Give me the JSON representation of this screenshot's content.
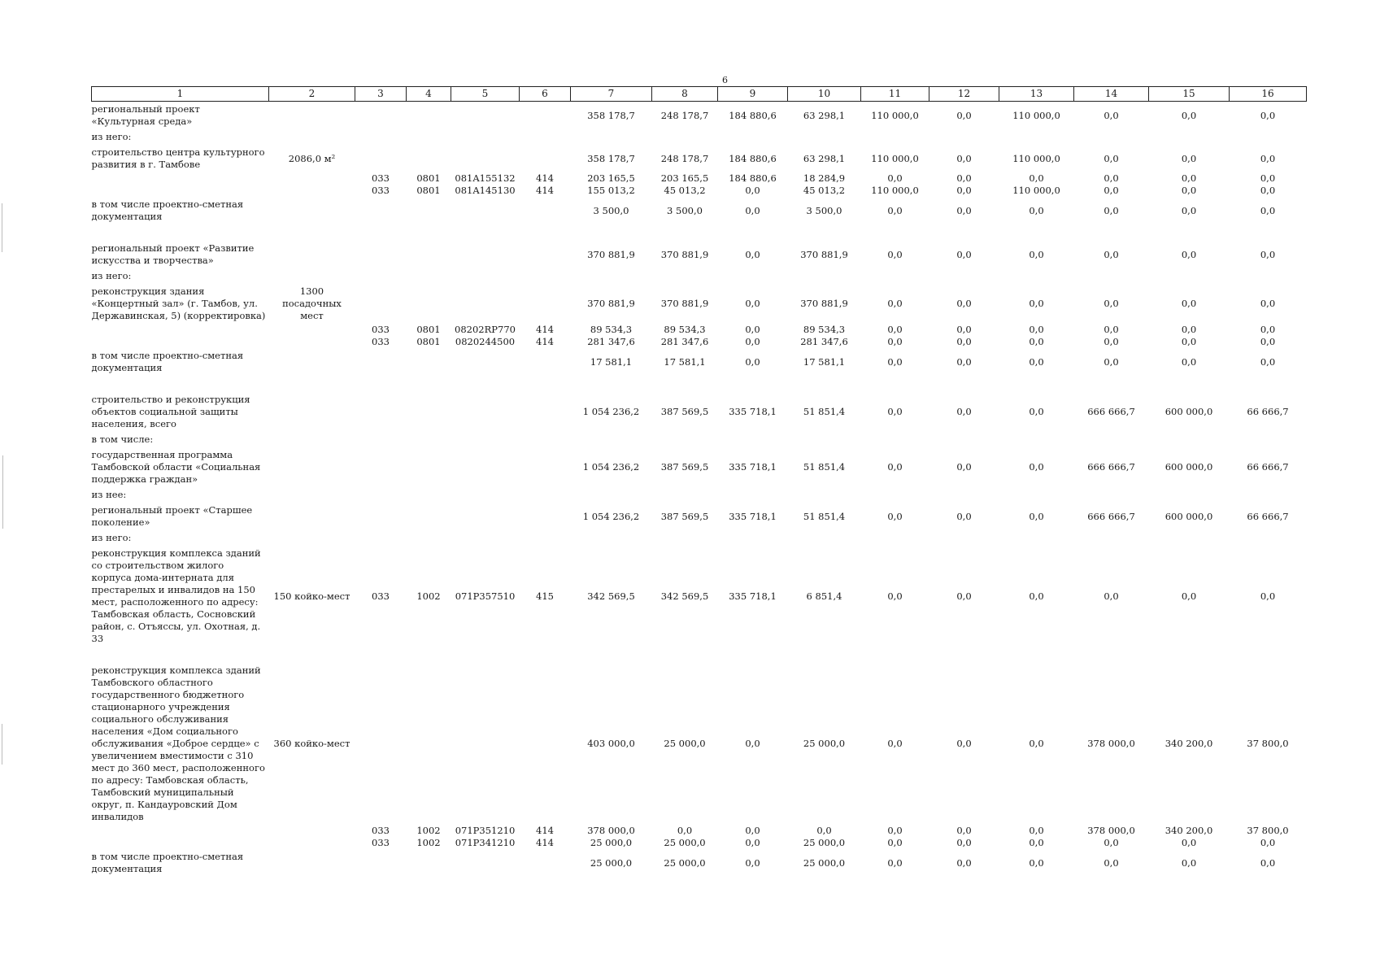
{
  "page_number": "6",
  "header": [
    "1",
    "2",
    "3",
    "4",
    "5",
    "6",
    "7",
    "8",
    "9",
    "10",
    "11",
    "12",
    "13",
    "14",
    "15",
    "16"
  ],
  "rows": [
    {
      "name": "региональный проект «Культурная среда»",
      "cells": [
        "",
        "",
        "",
        "",
        "",
        "358 178,7",
        "248 178,7",
        "184 880,6",
        "63 298,1",
        "110 000,0",
        "0,0",
        "110 000,0",
        "0,0",
        "0,0",
        "0,0"
      ]
    },
    {
      "name": "из него:",
      "cells": [
        "",
        "",
        "",
        "",
        "",
        "",
        "",
        "",
        "",
        "",
        "",
        "",
        "",
        "",
        ""
      ]
    },
    {
      "name": "строительство центра культурного развития в г. Тамбове",
      "cells": [
        "2086,0 м²",
        "",
        "",
        "",
        "",
        "358 178,7",
        "248 178,7",
        "184 880,6",
        "63 298,1",
        "110 000,0",
        "0,0",
        "110 000,0",
        "0,0",
        "0,0",
        "0,0"
      ]
    },
    {
      "name": "",
      "cells": [
        "",
        "033",
        "0801",
        "081A155132",
        "414",
        "203 165,5",
        "203 165,5",
        "184 880,6",
        "18 284,9",
        "0,0",
        "0,0",
        "0,0",
        "0,0",
        "0,0",
        "0,0"
      ]
    },
    {
      "name": "",
      "cells": [
        "",
        "033",
        "0801",
        "081A145130",
        "414",
        "155 013,2",
        "45 013,2",
        "0,0",
        "45 013,2",
        "110 000,0",
        "0,0",
        "110 000,0",
        "0,0",
        "0,0",
        "0,0"
      ]
    },
    {
      "name": "в том числе проектно-сметная документация",
      "cells": [
        "",
        "",
        "",
        "",
        "",
        "3 500,0",
        "3 500,0",
        "0,0",
        "3 500,0",
        "0,0",
        "0,0",
        "0,0",
        "0,0",
        "0,0",
        "0,0"
      ]
    },
    {
      "gap": true,
      "name": "",
      "cells": [
        "",
        "",
        "",
        "",
        "",
        "",
        "",
        "",
        "",
        "",
        "",
        "",
        "",
        "",
        ""
      ]
    },
    {
      "name": "региональный проект «Развитие искусства и творчества»",
      "cells": [
        "",
        "",
        "",
        "",
        "",
        "370 881,9",
        "370 881,9",
        "0,0",
        "370 881,9",
        "0,0",
        "0,0",
        "0,0",
        "0,0",
        "0,0",
        "0,0"
      ]
    },
    {
      "name": "из него:",
      "cells": [
        "",
        "",
        "",
        "",
        "",
        "",
        "",
        "",
        "",
        "",
        "",
        "",
        "",
        "",
        ""
      ]
    },
    {
      "name": "реконструкция здания «Концертный зал» (г. Тамбов, ул. Державинская, 5) (корректировка)",
      "cells": [
        "1300 посадочных мест",
        "",
        "",
        "",
        "",
        "370 881,9",
        "370 881,9",
        "0,0",
        "370 881,9",
        "0,0",
        "0,0",
        "0,0",
        "0,0",
        "0,0",
        "0,0"
      ]
    },
    {
      "name": "",
      "cells": [
        "",
        "033",
        "0801",
        "08202RP770",
        "414",
        "89 534,3",
        "89 534,3",
        "0,0",
        "89 534,3",
        "0,0",
        "0,0",
        "0,0",
        "0,0",
        "0,0",
        "0,0"
      ]
    },
    {
      "name": "",
      "cells": [
        "",
        "033",
        "0801",
        "0820244500",
        "414",
        "281 347,6",
        "281 347,6",
        "0,0",
        "281 347,6",
        "0,0",
        "0,0",
        "0,0",
        "0,0",
        "0,0",
        "0,0"
      ]
    },
    {
      "name": "в том числе проектно-сметная документация",
      "cells": [
        "",
        "",
        "",
        "",
        "",
        "17 581,1",
        "17 581,1",
        "0,0",
        "17 581,1",
        "0,0",
        "0,0",
        "0,0",
        "0,0",
        "0,0",
        "0,0"
      ]
    },
    {
      "gap": true,
      "name": "",
      "cells": [
        "",
        "",
        "",
        "",
        "",
        "",
        "",
        "",
        "",
        "",
        "",
        "",
        "",
        "",
        ""
      ]
    },
    {
      "name": "строительство и реконструкция объектов социальной защиты населения, всего",
      "cells": [
        "",
        "",
        "",
        "",
        "",
        "1 054 236,2",
        "387 569,5",
        "335 718,1",
        "51 851,4",
        "0,0",
        "0,0",
        "0,0",
        "666 666,7",
        "600 000,0",
        "66 666,7"
      ]
    },
    {
      "name": "в том числе:",
      "cells": [
        "",
        "",
        "",
        "",
        "",
        "",
        "",
        "",
        "",
        "",
        "",
        "",
        "",
        "",
        ""
      ]
    },
    {
      "name": "государственная программа Тамбовской области «Социальная поддержка граждан»",
      "cells": [
        "",
        "",
        "",
        "",
        "",
        "1 054 236,2",
        "387 569,5",
        "335 718,1",
        "51 851,4",
        "0,0",
        "0,0",
        "0,0",
        "666 666,7",
        "600 000,0",
        "66 666,7"
      ]
    },
    {
      "name": "из нее:",
      "cells": [
        "",
        "",
        "",
        "",
        "",
        "",
        "",
        "",
        "",
        "",
        "",
        "",
        "",
        "",
        ""
      ]
    },
    {
      "name": "региональный проект «Старшее поколение»",
      "cells": [
        "",
        "",
        "",
        "",
        "",
        "1 054 236,2",
        "387 569,5",
        "335 718,1",
        "51 851,4",
        "0,0",
        "0,0",
        "0,0",
        "666 666,7",
        "600 000,0",
        "66 666,7"
      ]
    },
    {
      "name": "из него:",
      "cells": [
        "",
        "",
        "",
        "",
        "",
        "",
        "",
        "",
        "",
        "",
        "",
        "",
        "",
        "",
        ""
      ]
    },
    {
      "name": "реконструкция комплекса зданий со строительством жилого корпуса дома-интерната для престарелых и инвалидов на 150 мест, расположенного по адресу: Тамбовская область, Сосновский район, с. Отъяссы, ул. Охотная, д. 33",
      "cells": [
        "150 койко-мест",
        "033",
        "1002",
        "071P357510",
        "415",
        "342 569,5",
        "342 569,5",
        "335 718,1",
        "6 851,4",
        "0,0",
        "0,0",
        "0,0",
        "0,0",
        "0,0",
        "0,0"
      ]
    },
    {
      "gap": true,
      "name": "",
      "cells": [
        "",
        "",
        "",
        "",
        "",
        "",
        "",
        "",
        "",
        "",
        "",
        "",
        "",
        "",
        ""
      ]
    },
    {
      "name": "реконструкция комплекса зданий Тамбовского областного государственного бюджетного стационарного учреждения социального обслуживания населения «Дом социального обслуживания «Доброе сердце» с увеличением вместимости с 310 мест до 360 мест, расположенного по адресу: Тамбовская область, Тамбовский муниципальный округ, п. Кандауровский Дом инвалидов",
      "cells": [
        "360 койко-мест",
        "",
        "",
        "",
        "",
        "403 000,0",
        "25 000,0",
        "0,0",
        "25 000,0",
        "0,0",
        "0,0",
        "0,0",
        "378 000,0",
        "340 200,0",
        "37 800,0"
      ]
    },
    {
      "name": "",
      "cells": [
        "",
        "033",
        "1002",
        "071P351210",
        "414",
        "378 000,0",
        "0,0",
        "0,0",
        "0,0",
        "0,0",
        "0,0",
        "0,0",
        "378 000,0",
        "340 200,0",
        "37 800,0"
      ]
    },
    {
      "name": "",
      "cells": [
        "",
        "033",
        "1002",
        "071P341210",
        "414",
        "25 000,0",
        "25 000,0",
        "0,0",
        "25 000,0",
        "0,0",
        "0,0",
        "0,0",
        "0,0",
        "0,0",
        "0,0"
      ]
    },
    {
      "name": "в том числе проектно-сметная документация",
      "cells": [
        "",
        "",
        "",
        "",
        "",
        "25 000,0",
        "25 000,0",
        "0,0",
        "25 000,0",
        "0,0",
        "0,0",
        "0,0",
        "0,0",
        "0,0",
        "0,0"
      ]
    }
  ]
}
